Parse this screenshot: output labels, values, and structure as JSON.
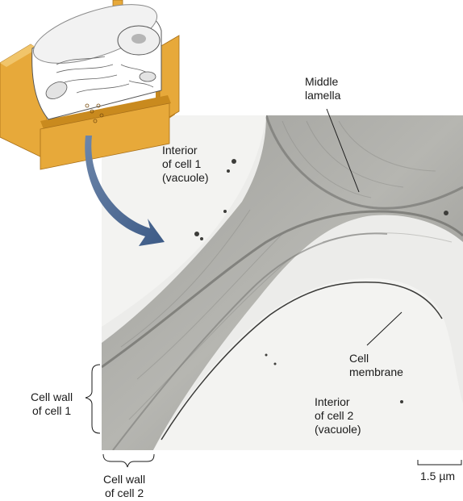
{
  "labels": {
    "middle_lamella": "Middle\nlamella",
    "interior_cell1": "Interior\nof cell 1\n(vacuole)",
    "interior_cell2": "Interior\nof cell 2\n(vacuole)",
    "cell_membrane": "Cell\nmembrane",
    "cell_wall_cell1": "Cell wall\nof cell 1",
    "cell_wall_cell2": "Cell wall\nof cell 2",
    "scale_bar": "1.5 µm"
  },
  "colors": {
    "wall_orange": "#e7a93a",
    "wall_shadow": "#c98a1e",
    "arrow_blue": "#3c5a86",
    "micrograph_bg": "#e9e9e7",
    "wall_texture": "#8e8e8a"
  }
}
